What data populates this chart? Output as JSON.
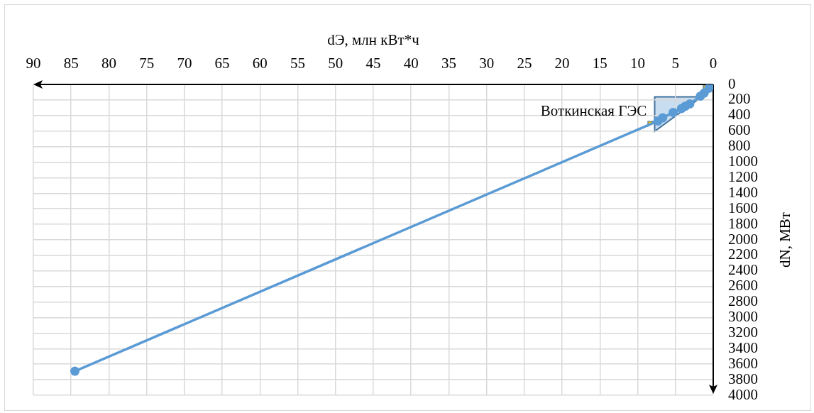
{
  "chart_data": {
    "type": "line",
    "xlabel": "dЭ, млн кВт*ч",
    "ylabel": "dN, МВт",
    "x": [
      0.1,
      0.6,
      1.2,
      1.7,
      3.1,
      3.7,
      4.2,
      5.3,
      6.7,
      7.3,
      84.5
    ],
    "series": [
      {
        "name": "Воткинская ГЭС",
        "color": "#5b9bd5",
        "values": [
          10,
          50,
          110,
          150,
          250,
          280,
          310,
          360,
          430,
          470,
          3690
        ]
      }
    ],
    "xlim": [
      90,
      0
    ],
    "xticks": [
      0,
      5,
      10,
      15,
      20,
      25,
      30,
      35,
      40,
      45,
      50,
      55,
      60,
      65,
      70,
      75,
      80,
      85,
      90
    ],
    "ylim": [
      4000,
      0
    ],
    "yticks": [
      0,
      200,
      400,
      600,
      800,
      1000,
      1200,
      1400,
      1600,
      1800,
      2000,
      2200,
      2400,
      2600,
      2800,
      3000,
      3200,
      3400,
      3600,
      3800,
      4000
    ],
    "grid": true,
    "marker": "circle",
    "line_style": "solid"
  }
}
